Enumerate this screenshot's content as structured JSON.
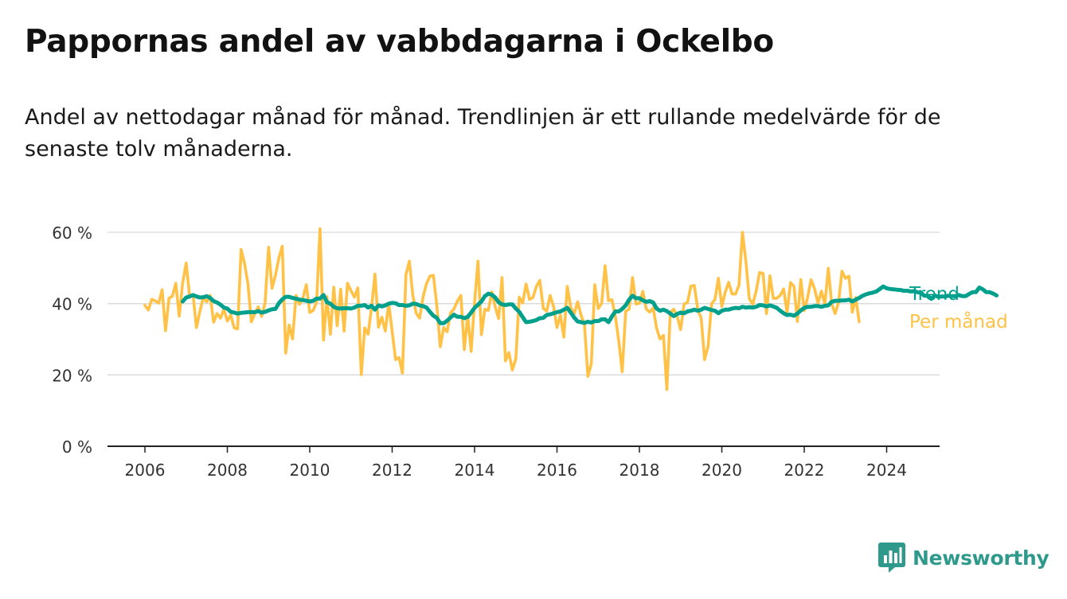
{
  "title": "Pappornas andel av vabbdagarna i Ockelbo",
  "subtitle": "Andel av nettodagar månad för månad. Trendlinjen är ett rullande medelvärde för de senaste tolv månaderna.",
  "brand": {
    "name": "Newsworthy",
    "logo_icon": "bar-chart-icon",
    "color": "#2f9a8c"
  },
  "chart_data": {
    "type": "line",
    "title": "Pappornas andel av vabbdagarna i Ockelbo",
    "xlabel": "",
    "ylabel": "",
    "x_ticks": [
      "2006",
      "2008",
      "2010",
      "2012",
      "2014",
      "2016",
      "2018",
      "2020",
      "2022",
      "2024"
    ],
    "y_ticks": [
      "0 %",
      "20 %",
      "40 %",
      "60 %"
    ],
    "ylim": [
      0,
      60
    ],
    "grid": true,
    "legend": "direct labels at right end of lines",
    "series": [
      {
        "name": "Per månad",
        "color": "#ffc247",
        "x_start": "2006-01",
        "interval": "month",
        "values": [
          39.5,
          38.2,
          41.2,
          40.8,
          40.1,
          43.9,
          32.4,
          41.5,
          42.1,
          45.7,
          36.5,
          45.8,
          51.4,
          42.1,
          42.5,
          33.3,
          37.8,
          41.7,
          40.5,
          42.3,
          34.8,
          37.2,
          35.9,
          38.4,
          35.1,
          36.8,
          33.2,
          32.9,
          55.2,
          51.3,
          45.5,
          34.9,
          37.2,
          39.1,
          36.4,
          40.2,
          55.8,
          44.3,
          47.9,
          52.8,
          56.1,
          26.1,
          34.0,
          30.1,
          42.3,
          39.8,
          41.6,
          45.3,
          37.5,
          38.1,
          40.4,
          61.0,
          29.8,
          41.9,
          31.4,
          44.6,
          33.8,
          44.0,
          32.3,
          45.7,
          43.6,
          41.8,
          44.4,
          20.1,
          33.2,
          31.4,
          38.9,
          48.3,
          33.4,
          36.2,
          32.3,
          40.1,
          32.2,
          24.3,
          24.9,
          20.5,
          48.1,
          51.9,
          42.4,
          37.3,
          35.9,
          41.8,
          45.6,
          47.7,
          47.9,
          39.4,
          27.9,
          33.3,
          32.1,
          37.4,
          38.5,
          40.7,
          42.3,
          27.1,
          36.7,
          26.6,
          40.4,
          51.9,
          31.3,
          38.4,
          38.1,
          43.3,
          39.1,
          35.8,
          47.3,
          23.9,
          26.3,
          21.4,
          24.5,
          41.8,
          40.2,
          45.5,
          41.2,
          41.7,
          44.8,
          46.5,
          38.7,
          37.9,
          42.3,
          39.2,
          33.3,
          36.8,
          30.6,
          44.8,
          38.9,
          37.1,
          40.5,
          36.8,
          34.1,
          19.6,
          23.1,
          45.3,
          38.6,
          40.1,
          50.6,
          40.8,
          41.1,
          36.5,
          29.5,
          20.9,
          37.9,
          38.4,
          47.3,
          39.9,
          40.1,
          43.4,
          38.5,
          37.6,
          38.8,
          33.1,
          30.1,
          31.1,
          15.9,
          37.5,
          38.4,
          36.5,
          32.7,
          39.9,
          40.3,
          44.9,
          45.1,
          38.3,
          35.9,
          24.3,
          28.1,
          39.9,
          41.2,
          47.1,
          39.2,
          43.2,
          46.0,
          42.7,
          42.7,
          45.2,
          60.0,
          51.9,
          41.4,
          39.8,
          43.5,
          48.7,
          48.5,
          37.2,
          47.8,
          41.5,
          41.5,
          42.3,
          44.1,
          37.5,
          45.9,
          44.8,
          35.0,
          46.7,
          38.0,
          41.8,
          46.7,
          44.2,
          40.1,
          43.5,
          39.8,
          49.9,
          39.9,
          37.2,
          40.3,
          49.1,
          47.1,
          47.7,
          37.6,
          41.7,
          34.9
        ]
      },
      {
        "name": "Trend",
        "color": "#00a08d",
        "x_start": "2006-12",
        "interval": "month",
        "values": [
          40.6,
          41.7,
          42.0,
          42.4,
          42.0,
          41.7,
          41.8,
          42.1,
          41.6,
          40.7,
          40.3,
          39.7,
          38.9,
          38.6,
          37.7,
          37.5,
          37.2,
          37.4,
          37.5,
          37.6,
          37.6,
          37.6,
          37.9,
          37.5,
          37.7,
          38.1,
          38.4,
          38.5,
          40.1,
          41.2,
          41.9,
          41.9,
          41.6,
          41.4,
          41.1,
          41.0,
          40.8,
          40.6,
          40.8,
          41.4,
          41.4,
          42.4,
          40.4,
          40.0,
          39.1,
          38.7,
          38.6,
          38.7,
          38.7,
          38.6,
          38.9,
          39.4,
          39.4,
          39.6,
          38.9,
          39.4,
          38.3,
          39.5,
          39.2,
          39.5,
          40.0,
          40.2,
          40.1,
          39.6,
          39.6,
          39.4,
          39.5,
          40.0,
          39.9,
          39.5,
          39.3,
          38.9,
          37.7,
          36.6,
          36.0,
          34.5,
          34.5,
          35.2,
          36.1,
          36.9,
          36.3,
          36.3,
          35.9,
          36.3,
          37.5,
          38.8,
          39.7,
          40.6,
          42.1,
          42.8,
          42.5,
          41.7,
          40.4,
          39.8,
          39.6,
          39.8,
          39.8,
          38.6,
          37.7,
          36.2,
          34.8,
          34.9,
          35.1,
          35.4,
          35.9,
          36.0,
          36.8,
          37.0,
          37.3,
          37.6,
          37.8,
          38.3,
          38.8,
          37.5,
          36.1,
          35.0,
          34.8,
          34.6,
          34.9,
          34.7,
          35.1,
          35.1,
          35.6,
          35.6,
          34.8,
          36.4,
          37.8,
          37.8,
          38.5,
          39.5,
          41.1,
          42.2,
          41.5,
          41.5,
          40.9,
          40.5,
          40.7,
          40.3,
          38.6,
          38.0,
          38.3,
          37.9,
          37.2,
          36.5,
          37.1,
          37.5,
          37.3,
          37.8,
          38.0,
          38.3,
          38.0,
          38.3,
          38.8,
          38.5,
          38.2,
          38.0,
          37.3,
          38.0,
          38.3,
          38.3,
          38.6,
          38.8,
          38.7,
          39.1,
          38.9,
          39.0,
          38.9,
          39.1,
          39.6,
          39.5,
          39.2,
          39.5,
          39.2,
          38.8,
          38.0,
          37.3,
          36.8,
          36.9,
          36.6,
          37.2,
          38.1,
          38.8,
          39.1,
          39.1,
          39.3,
          39.3,
          39.1,
          39.4,
          39.5,
          40.5,
          40.8,
          40.8,
          40.9,
          40.9,
          41.1,
          40.6,
          41.1,
          41.6,
          42.2,
          42.6,
          42.9,
          43.1,
          43.4,
          44.1,
          44.8,
          44.3,
          44.1,
          44.0,
          43.9,
          43.8,
          43.6,
          43.6,
          43.4,
          43.5,
          43.2,
          43.0,
          42.2,
          42.2,
          41.3,
          42.3,
          41.9,
          42.0,
          42.0,
          42.2,
          42.1,
          42.1,
          42.4,
          42.1,
          42.1,
          42.7,
          43.2,
          43.2,
          44.5,
          44.0,
          43.2,
          43.2,
          42.8,
          42.3
        ]
      }
    ]
  }
}
